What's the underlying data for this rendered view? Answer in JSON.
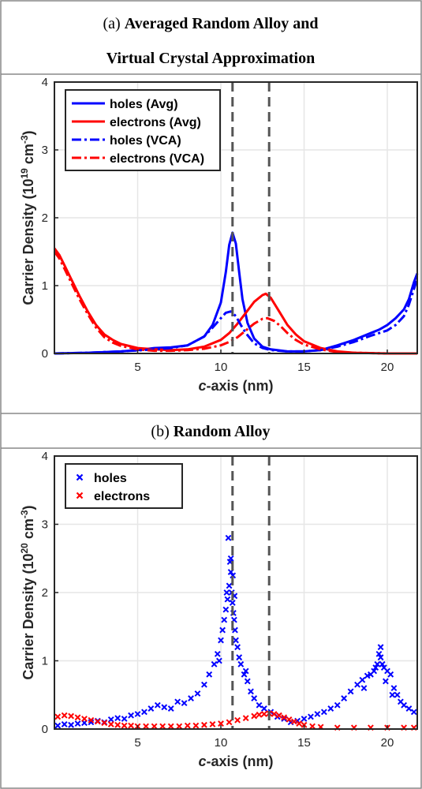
{
  "panel_a": {
    "title_prefix": "(a)",
    "title_line1": "Averaged Random Alloy and",
    "title_line2": "Virtual Crystal Approximation"
  },
  "panel_b": {
    "title_prefix": "(b)",
    "title_bold": "Random Alloy"
  },
  "colors": {
    "holes": "#0000ff",
    "electrons": "#ff0000",
    "vline": "#555555",
    "grid": "#e6e6e6"
  },
  "chart_data": [
    {
      "type": "line",
      "xlabel_italic": "c",
      "xlabel_rest": "-axis (nm)",
      "ylabel_base": "Carrier Density (10",
      "ylabel_exp": "19",
      "ylabel_unit": " cm",
      "ylabel_unit_exp": "-3",
      "ylabel_close": ")",
      "xlim": [
        0,
        21.8
      ],
      "ylim": [
        0,
        4
      ],
      "xticks": [
        5,
        10,
        15,
        20
      ],
      "yticks": [
        0,
        1,
        2,
        3,
        4
      ],
      "grid": true,
      "legend_position": "top-left",
      "vlines": [
        10.7,
        12.9
      ],
      "series": [
        {
          "name": "holes (Avg)",
          "color": "#0000ff",
          "style": "solid",
          "x": [
            0,
            2,
            4,
            5,
            6,
            7,
            8,
            9,
            9.5,
            10,
            10.3,
            10.5,
            10.7,
            10.9,
            11.1,
            11.3,
            11.6,
            12,
            12.5,
            13,
            14,
            15,
            16,
            17,
            18,
            19,
            19.5,
            20,
            20.5,
            21,
            21.3,
            21.6,
            21.8
          ],
          "y": [
            0,
            0.01,
            0.03,
            0.05,
            0.08,
            0.09,
            0.12,
            0.25,
            0.42,
            0.75,
            1.2,
            1.6,
            1.78,
            1.62,
            1.2,
            0.8,
            0.45,
            0.22,
            0.1,
            0.06,
            0.03,
            0.03,
            0.05,
            0.12,
            0.2,
            0.3,
            0.35,
            0.42,
            0.52,
            0.65,
            0.8,
            1.05,
            1.18
          ]
        },
        {
          "name": "electrons (Avg)",
          "color": "#ff0000",
          "style": "solid",
          "x": [
            0,
            0.3,
            0.6,
            1,
            1.5,
            2,
            2.5,
            3,
            3.5,
            4,
            5,
            6,
            7,
            8,
            9,
            10,
            10.5,
            11,
            11.5,
            12,
            12.5,
            12.7,
            13,
            13.5,
            14,
            14.5,
            15,
            16,
            17,
            18,
            20,
            21.8
          ],
          "y": [
            1.55,
            1.45,
            1.3,
            1.1,
            0.85,
            0.62,
            0.42,
            0.28,
            0.2,
            0.14,
            0.08,
            0.06,
            0.05,
            0.06,
            0.1,
            0.2,
            0.3,
            0.44,
            0.6,
            0.76,
            0.86,
            0.88,
            0.82,
            0.62,
            0.42,
            0.28,
            0.18,
            0.08,
            0.03,
            0.01,
            0,
            0
          ]
        },
        {
          "name": "holes (VCA)",
          "color": "#0000ff",
          "style": "dashdot",
          "x": [
            0,
            2,
            4,
            6,
            7,
            8,
            9,
            9.5,
            10,
            10.3,
            10.6,
            10.9,
            11.2,
            11.5,
            12,
            12.5,
            13,
            14,
            15,
            16,
            17,
            18,
            19,
            19.5,
            20,
            20.5,
            21,
            21.3,
            21.6,
            21.8
          ],
          "y": [
            0,
            0.01,
            0.03,
            0.06,
            0.08,
            0.12,
            0.25,
            0.38,
            0.52,
            0.6,
            0.62,
            0.55,
            0.42,
            0.3,
            0.15,
            0.08,
            0.05,
            0.03,
            0.03,
            0.05,
            0.1,
            0.17,
            0.26,
            0.3,
            0.34,
            0.42,
            0.55,
            0.72,
            0.95,
            1.1
          ]
        },
        {
          "name": "electrons (VCA)",
          "color": "#ff0000",
          "style": "dashdot",
          "x": [
            0,
            0.3,
            0.6,
            1,
            1.5,
            2,
            2.5,
            3,
            3.5,
            4,
            5,
            6,
            7,
            8,
            9,
            10,
            10.5,
            11,
            11.5,
            12,
            12.5,
            12.8,
            13.2,
            13.6,
            14,
            14.5,
            15,
            16,
            17,
            18,
            20,
            21.8
          ],
          "y": [
            1.5,
            1.4,
            1.25,
            1.05,
            0.8,
            0.58,
            0.38,
            0.24,
            0.16,
            0.11,
            0.06,
            0.04,
            0.04,
            0.05,
            0.07,
            0.12,
            0.17,
            0.24,
            0.34,
            0.44,
            0.51,
            0.52,
            0.48,
            0.4,
            0.3,
            0.2,
            0.13,
            0.06,
            0.02,
            0.01,
            0,
            0
          ]
        }
      ]
    },
    {
      "type": "scatter",
      "xlabel_italic": "c",
      "xlabel_rest": "-axis (nm)",
      "ylabel_base": "Carrier Density (10",
      "ylabel_exp": "20",
      "ylabel_unit": " cm",
      "ylabel_unit_exp": "-3",
      "ylabel_close": ")",
      "xlim": [
        0,
        21.8
      ],
      "ylim": [
        0,
        4
      ],
      "xticks": [
        5,
        10,
        15,
        20
      ],
      "yticks": [
        0,
        1,
        2,
        3,
        4
      ],
      "grid": true,
      "legend_position": "top-left",
      "vlines": [
        10.7,
        12.9
      ],
      "series": [
        {
          "name": "holes",
          "color": "#0000ff",
          "marker": "x",
          "x": [
            0.2,
            0.6,
            1.0,
            1.4,
            1.8,
            2.2,
            2.6,
            3.0,
            3.4,
            3.8,
            4.2,
            4.6,
            5.0,
            5.4,
            5.8,
            6.2,
            6.6,
            7.0,
            7.4,
            7.8,
            8.2,
            8.6,
            9.0,
            9.3,
            9.6,
            9.8,
            10.0,
            10.1,
            10.2,
            10.3,
            10.4,
            10.5,
            10.55,
            10.6,
            10.65,
            10.7,
            10.75,
            10.8,
            10.85,
            10.9,
            11.0,
            11.1,
            11.2,
            11.4,
            11.6,
            11.8,
            12.0,
            12.3,
            12.6,
            13.0,
            13.4,
            13.8,
            14.2,
            14.6,
            15.0,
            15.4,
            15.8,
            16.2,
            16.6,
            17.0,
            17.4,
            17.8,
            18.2,
            18.5,
            18.8,
            19.0,
            19.2,
            19.4,
            19.5,
            19.6,
            19.7,
            19.8,
            20.0,
            20.2,
            20.4,
            20.6,
            20.8,
            21.0,
            21.3,
            21.6,
            10.45,
            10.6,
            10.72,
            10.35,
            10.82,
            11.5,
            9.9,
            19.6,
            19.3,
            19.9,
            18.6,
            20.3
          ],
          "y": [
            0.05,
            0.07,
            0.06,
            0.08,
            0.09,
            0.1,
            0.12,
            0.1,
            0.14,
            0.16,
            0.15,
            0.2,
            0.22,
            0.25,
            0.3,
            0.35,
            0.32,
            0.3,
            0.4,
            0.38,
            0.45,
            0.52,
            0.65,
            0.8,
            0.95,
            1.1,
            1.3,
            1.45,
            1.6,
            1.75,
            1.9,
            2.1,
            2.45,
            2.3,
            2.0,
            1.85,
            1.7,
            1.6,
            1.45,
            1.3,
            1.2,
            1.05,
            0.95,
            0.8,
            0.7,
            0.55,
            0.45,
            0.35,
            0.3,
            0.25,
            0.18,
            0.15,
            0.1,
            0.12,
            0.15,
            0.18,
            0.22,
            0.25,
            0.3,
            0.35,
            0.45,
            0.55,
            0.65,
            0.72,
            0.78,
            0.8,
            0.85,
            0.95,
            1.1,
            1.05,
            0.95,
            0.9,
            0.85,
            0.8,
            0.6,
            0.5,
            0.4,
            0.35,
            0.3,
            0.25,
            2.8,
            2.5,
            2.25,
            2.0,
            1.95,
            0.85,
            1.0,
            1.2,
            0.9,
            0.7,
            0.6,
            0.5
          ]
        },
        {
          "name": "electrons",
          "color": "#ff0000",
          "marker": "x",
          "x": [
            0.2,
            0.6,
            1.0,
            1.4,
            1.8,
            2.2,
            2.6,
            3.0,
            3.4,
            3.8,
            4.2,
            4.6,
            5.0,
            5.5,
            6.0,
            6.5,
            7.0,
            7.5,
            8.0,
            8.5,
            9.0,
            9.5,
            10.0,
            10.5,
            11.0,
            11.5,
            12.0,
            12.3,
            12.6,
            12.9,
            13.2,
            13.5,
            13.8,
            14.1,
            14.4,
            14.7,
            15.0,
            15.5,
            16.0,
            17.0,
            18.0,
            19.0,
            20.0,
            21.0,
            21.6
          ],
          "y": [
            0.18,
            0.2,
            0.19,
            0.17,
            0.15,
            0.13,
            0.11,
            0.09,
            0.07,
            0.06,
            0.05,
            0.05,
            0.04,
            0.04,
            0.04,
            0.04,
            0.04,
            0.04,
            0.05,
            0.05,
            0.06,
            0.07,
            0.08,
            0.1,
            0.13,
            0.16,
            0.19,
            0.21,
            0.22,
            0.23,
            0.22,
            0.2,
            0.17,
            0.14,
            0.11,
            0.08,
            0.06,
            0.04,
            0.03,
            0.02,
            0.02,
            0.02,
            0.02,
            0.02,
            0.02
          ]
        }
      ]
    }
  ]
}
